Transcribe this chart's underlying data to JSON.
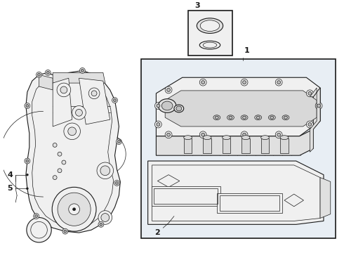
{
  "bg": "#ffffff",
  "box_bg": "#e8eef4",
  "lc": "#1a1a1a",
  "lc_light": "#666666",
  "fc_white": "#ffffff",
  "fc_light": "#f0f0f0",
  "fc_mid": "#e0e0e0",
  "label_1": "1",
  "label_2": "2",
  "label_3": "3",
  "label_4": "4",
  "label_5": "5",
  "fig_width": 4.9,
  "fig_height": 3.6,
  "dpi": 100
}
